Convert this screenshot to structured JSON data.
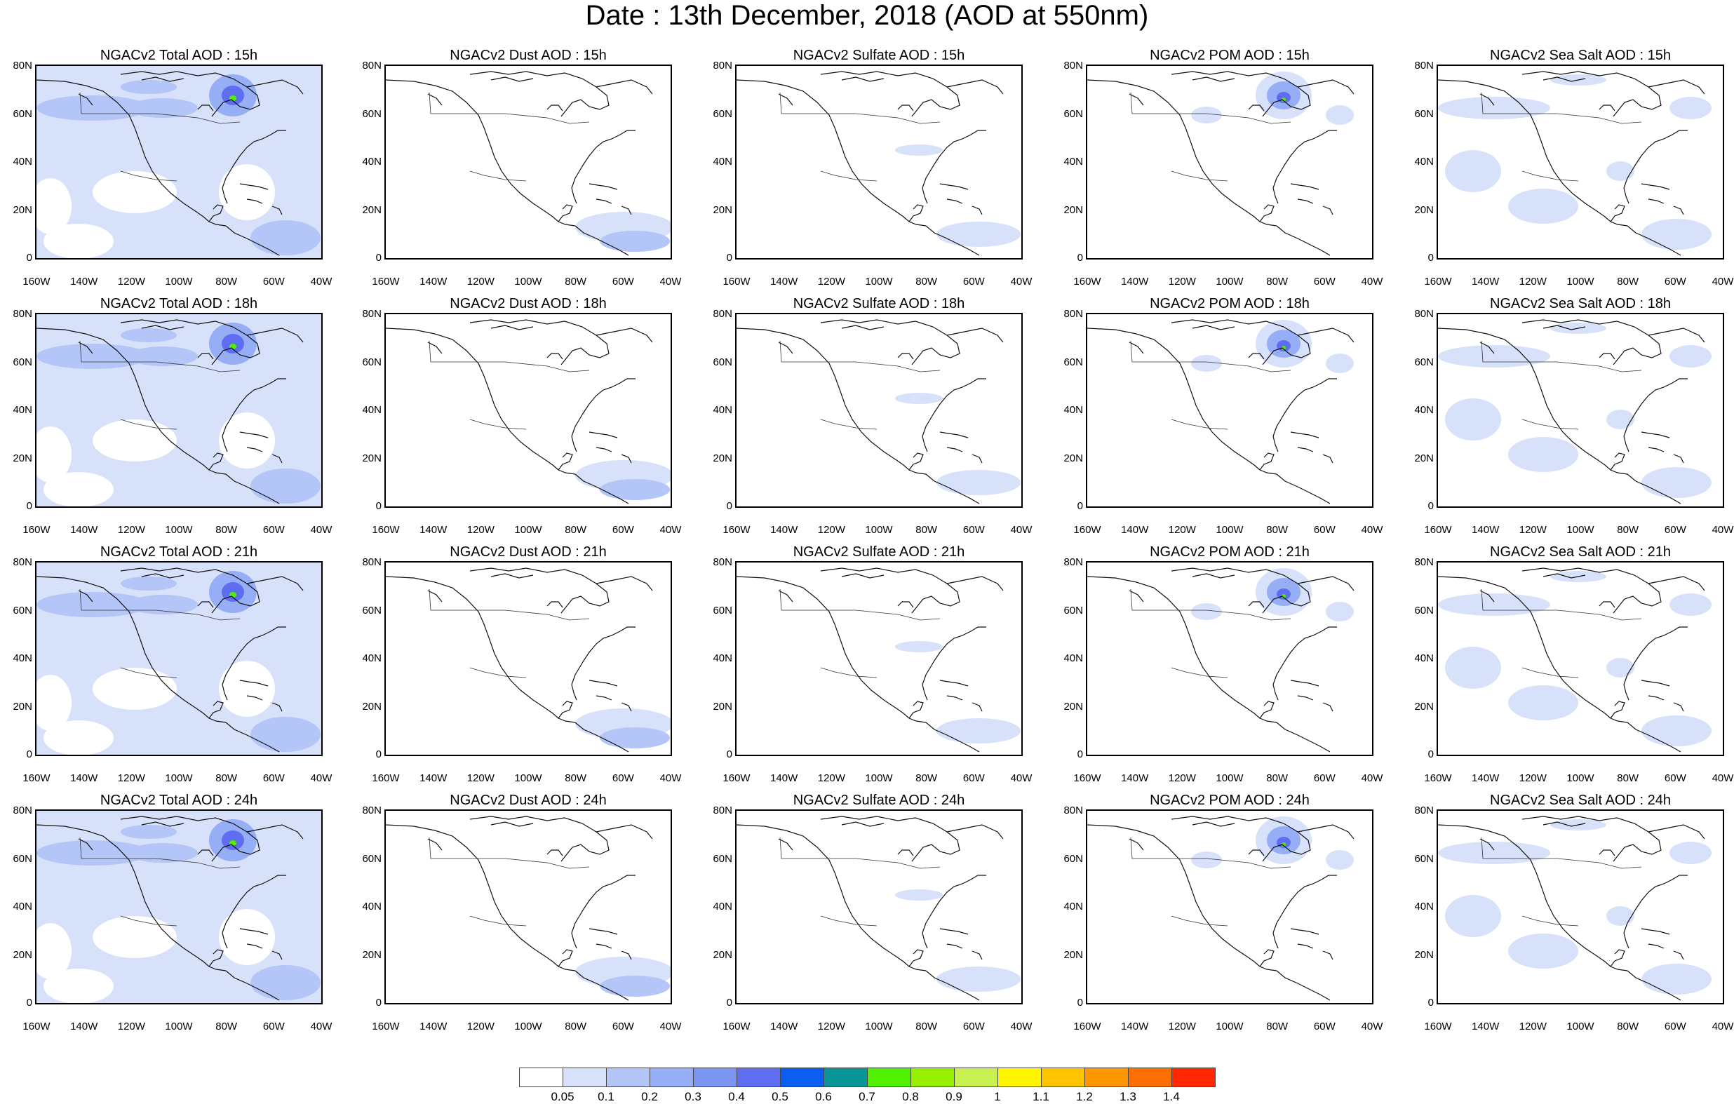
{
  "title": "Date : 13th December, 2018 (AOD at 550nm)",
  "lat_labels": [
    "80N",
    "60N",
    "40N",
    "20N",
    "0"
  ],
  "lon_labels": [
    "160W",
    "140W",
    "120W",
    "100W",
    "80W",
    "60W",
    "40W"
  ],
  "panels": [
    {
      "title": "NGACv2 Total AOD : 15h",
      "field": "total",
      "hour": 15
    },
    {
      "title": "NGACv2 Dust AOD : 15h",
      "field": "dust",
      "hour": 15
    },
    {
      "title": "NGACv2 Sulfate AOD : 15h",
      "field": "sulfate",
      "hour": 15
    },
    {
      "title": "NGACv2 POM AOD : 15h",
      "field": "pom",
      "hour": 15
    },
    {
      "title": "NGACv2 Sea Salt AOD : 15h",
      "field": "seasalt",
      "hour": 15
    },
    {
      "title": "NGACv2 Total AOD : 18h",
      "field": "total",
      "hour": 18
    },
    {
      "title": "NGACv2 Dust AOD : 18h",
      "field": "dust",
      "hour": 18
    },
    {
      "title": "NGACv2 Sulfate AOD : 18h",
      "field": "sulfate",
      "hour": 18
    },
    {
      "title": "NGACv2 POM AOD : 18h",
      "field": "pom",
      "hour": 18
    },
    {
      "title": "NGACv2 Sea Salt AOD : 18h",
      "field": "seasalt",
      "hour": 18
    },
    {
      "title": "NGACv2 Total AOD : 21h",
      "field": "total",
      "hour": 21
    },
    {
      "title": "NGACv2 Dust AOD : 21h",
      "field": "dust",
      "hour": 21
    },
    {
      "title": "NGACv2 Sulfate AOD : 21h",
      "field": "sulfate",
      "hour": 21
    },
    {
      "title": "NGACv2 POM AOD : 21h",
      "field": "pom",
      "hour": 21
    },
    {
      "title": "NGACv2 Sea Salt AOD : 21h",
      "field": "seasalt",
      "hour": 21
    },
    {
      "title": "NGACv2 Total AOD : 24h",
      "field": "total",
      "hour": 24
    },
    {
      "title": "NGACv2 Dust AOD : 24h",
      "field": "dust",
      "hour": 24
    },
    {
      "title": "NGACv2 Sulfate AOD : 24h",
      "field": "sulfate",
      "hour": 24
    },
    {
      "title": "NGACv2 POM AOD : 24h",
      "field": "pom",
      "hour": 24
    },
    {
      "title": "NGACv2 Sea Salt  AOD : 24h",
      "field": "seasalt",
      "hour": 24
    }
  ],
  "legend": {
    "colors": [
      "#ffffff",
      "#d7e1fa",
      "#b4c5f7",
      "#96aef5",
      "#7d95f2",
      "#5f6ef0",
      "#0a5ff0",
      "#0a9696",
      "#50f000",
      "#96f000",
      "#c8f050",
      "#fff500",
      "#ffc400",
      "#ff9600",
      "#ff6e00",
      "#ff2800"
    ],
    "labels": [
      "0.05",
      "0.1",
      "0.2",
      "0.3",
      "0.4",
      "0.5",
      "0.6",
      "0.7",
      "0.8",
      "0.9",
      "1",
      "1.1",
      "1.2",
      "1.3",
      "1.4"
    ]
  }
}
